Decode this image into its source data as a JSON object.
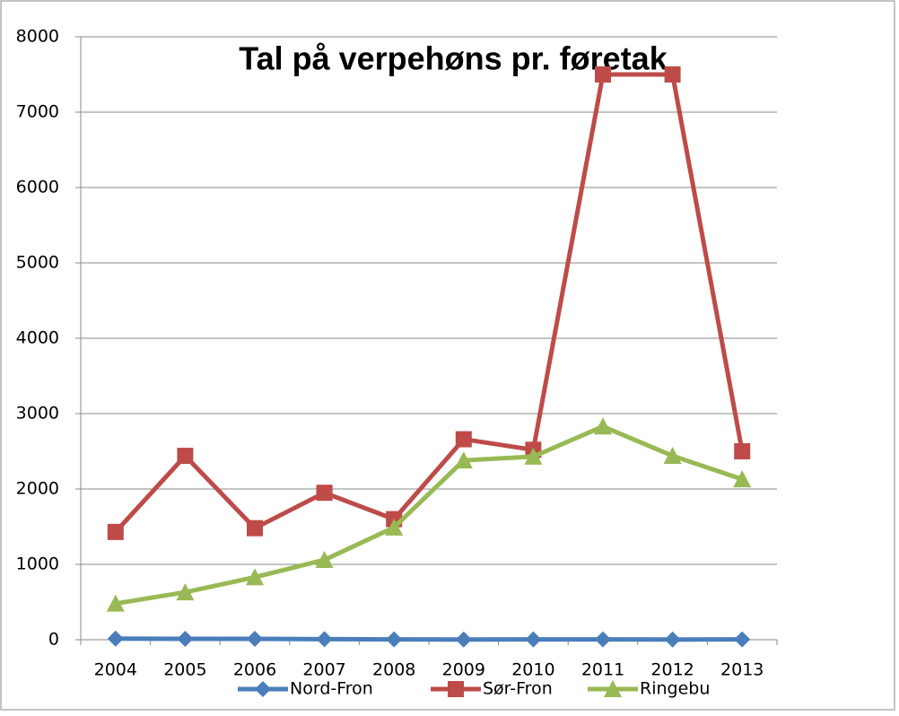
{
  "chart_data": {
    "type": "line",
    "title": "Tal på verpehøns pr. føretak",
    "categories": [
      "2004",
      "2005",
      "2006",
      "2007",
      "2008",
      "2009",
      "2010",
      "2011",
      "2012",
      "2013"
    ],
    "series": [
      {
        "name": "Nord-Fron",
        "color": "#4a7ebb",
        "marker": "diamond",
        "values": [
          15,
          12,
          12,
          8,
          5,
          3,
          5,
          5,
          3,
          5
        ]
      },
      {
        "name": "Sør-Fron",
        "color": "#be4b48",
        "marker": "square",
        "values": [
          1430,
          2440,
          1480,
          1950,
          1600,
          2660,
          2520,
          7500,
          7500,
          2500
        ]
      },
      {
        "name": "Ringebu",
        "color": "#98b954",
        "marker": "triangle",
        "values": [
          480,
          630,
          830,
          1060,
          1490,
          2380,
          2430,
          2830,
          2440,
          2130
        ]
      }
    ],
    "ylim": [
      0,
      8000
    ],
    "yticks": [
      0,
      1000,
      2000,
      3000,
      4000,
      5000,
      6000,
      7000,
      8000
    ],
    "grid": true,
    "legend": "bottom"
  }
}
